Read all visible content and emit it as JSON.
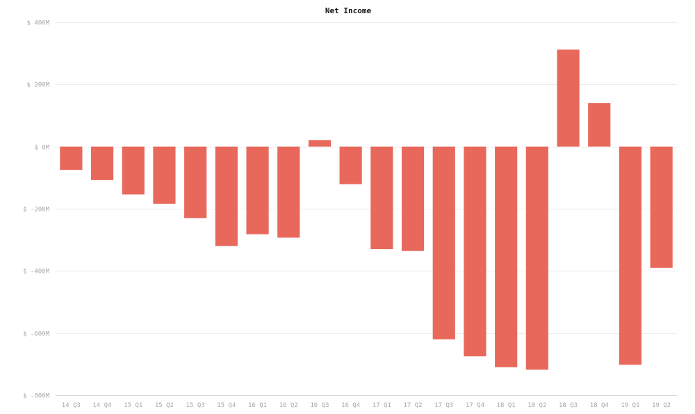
{
  "chart_data": {
    "type": "bar",
    "title": "Net Income",
    "xlabel": "",
    "ylabel": "",
    "categories": [
      "14 Q3",
      "14 Q4",
      "15 Q1",
      "15 Q2",
      "15 Q3",
      "15 Q4",
      "16 Q1",
      "16 Q2",
      "16 Q3",
      "16 Q4",
      "17 Q1",
      "17 Q2",
      "17 Q3",
      "17 Q4",
      "18 Q1",
      "18 Q2",
      "18 Q3",
      "18 Q4",
      "19 Q1",
      "19 Q2"
    ],
    "values": [
      -75,
      -108,
      -154,
      -184,
      -230,
      -320,
      -282,
      -293,
      21,
      -121,
      -330,
      -336,
      -620,
      -675,
      -710,
      -718,
      312,
      140,
      -702,
      -390
    ],
    "unit": "$ M",
    "ylim": [
      -800,
      400
    ],
    "yticks": [
      400,
      200,
      0,
      -200,
      -400,
      -600,
      -800
    ],
    "ytick_labels": [
      "$ 400M",
      "$ 200M",
      "$ 0M",
      "$ -200M",
      "$ -400M",
      "$ -600M",
      "$ -800M"
    ],
    "grid": true,
    "legend": "none",
    "bar_color": "#e8695c"
  }
}
